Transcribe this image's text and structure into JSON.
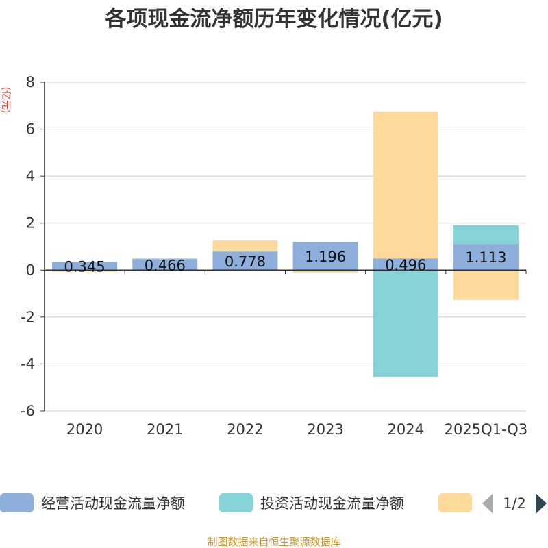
{
  "chart_data": {
    "type": "bar",
    "stacked": true,
    "title": "各项现金流净额历年变化情况(亿元)",
    "ylabel": "(亿元)",
    "ylim": [
      -6,
      8
    ],
    "yticks": [
      -6,
      -4,
      -2,
      0,
      2,
      4,
      6,
      8
    ],
    "categories": [
      "2020",
      "2021",
      "2022",
      "2023",
      "2024",
      "2025Q1-Q3"
    ],
    "series": [
      {
        "name": "经营活动现金流量净额",
        "color": "#8eaedb",
        "values": [
          0.345,
          0.466,
          0.778,
          1.196,
          0.496,
          1.113
        ],
        "labels": [
          "0.345",
          "0.466",
          "0.778",
          "1.196",
          "0.496",
          "1.113"
        ]
      },
      {
        "name": "投资活动现金流量净额",
        "color": "#86d4d8",
        "values": [
          -0.04,
          0.03,
          0.03,
          -0.03,
          -4.55,
          0.8
        ]
      },
      {
        "name": "",
        "color": "#fdd99b",
        "values": [
          -0.02,
          -0.02,
          0.45,
          -0.08,
          6.25,
          -1.27
        ]
      }
    ],
    "legend": {
      "position": "bottom",
      "page": "1/2"
    }
  },
  "source": "制图数据来自恒生聚源数据库",
  "colors": {
    "unit": "#e8413e",
    "source": "#c8962e",
    "axis": "#333333",
    "grid": "#cccccc",
    "pager_active": "#2f4554",
    "pager_inactive": "#aaaaaa"
  }
}
